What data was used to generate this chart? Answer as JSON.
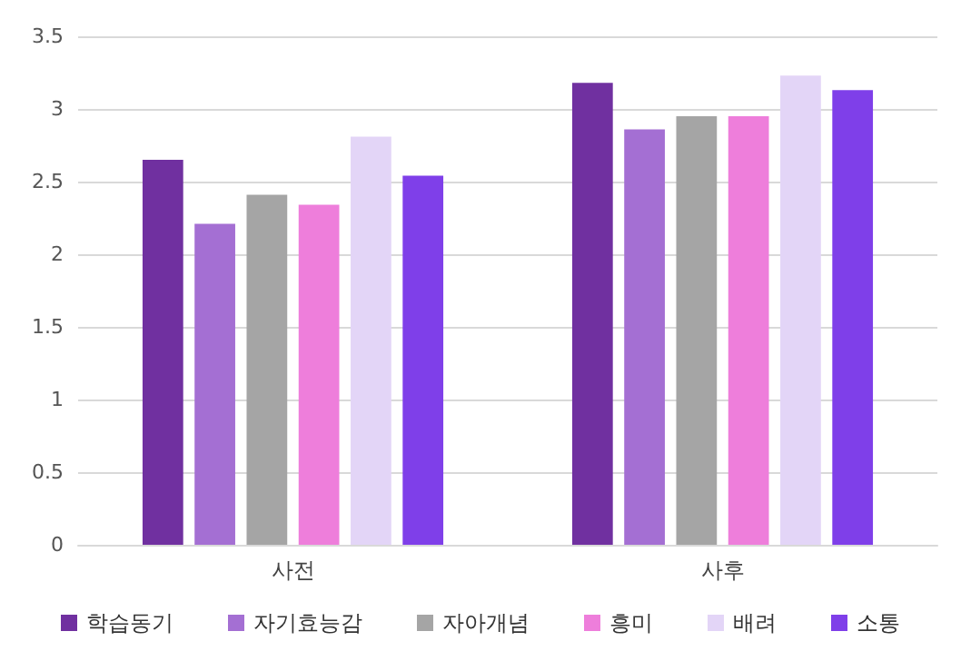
{
  "chart_data": {
    "type": "bar",
    "categories": [
      "사전",
      "사후"
    ],
    "series": [
      {
        "name": "학습동기",
        "color": "#7030a0",
        "values": [
          2.65,
          3.18
        ]
      },
      {
        "name": "자기효능감",
        "color": "#a46fd3",
        "values": [
          2.21,
          2.86
        ]
      },
      {
        "name": "자아개념",
        "color": "#a5a5a5",
        "values": [
          2.41,
          2.95
        ]
      },
      {
        "name": "흥미",
        "color": "#ee7edb",
        "values": [
          2.34,
          2.95
        ]
      },
      {
        "name": "배려",
        "color": "#e3d5f7",
        "values": [
          2.81,
          3.23
        ]
      },
      {
        "name": "소통",
        "color": "#7f3fe9",
        "values": [
          2.54,
          3.13
        ]
      }
    ],
    "ylim": [
      0,
      3.5
    ],
    "yticks": [
      0,
      0.5,
      1,
      1.5,
      2,
      2.5,
      3,
      3.5
    ],
    "grid": "y",
    "legend": "bottom"
  }
}
